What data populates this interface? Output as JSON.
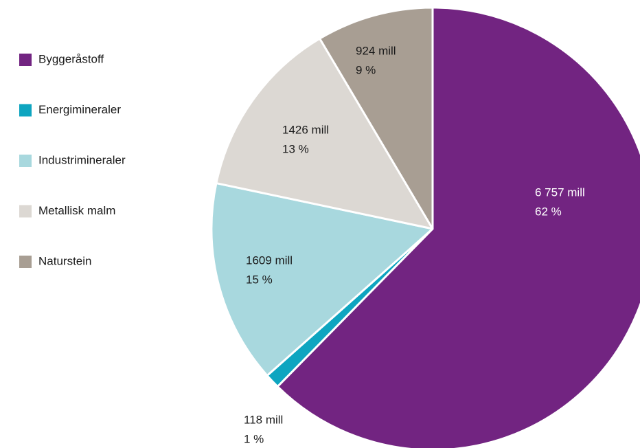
{
  "chart_data": {
    "type": "pie",
    "categories": [
      "Byggeråstoff",
      "Energimineraler",
      "Industrimineraler",
      "Metallisk malm",
      "Naturstein"
    ],
    "values": [
      6757,
      118,
      1609,
      1426,
      924
    ],
    "value_labels": [
      "6 757 mill",
      "118 mill",
      "1609 mill",
      "1426 mill",
      "924 mill"
    ],
    "percentages": [
      62,
      1,
      15,
      13,
      9
    ],
    "percentage_labels": [
      "62 %",
      "1 %",
      "15 %",
      "13 %",
      "9 %"
    ],
    "colors": [
      "#722481",
      "#0ea5c0",
      "#a8d8de",
      "#dcd8d3",
      "#a89e93"
    ],
    "legend": "left"
  }
}
